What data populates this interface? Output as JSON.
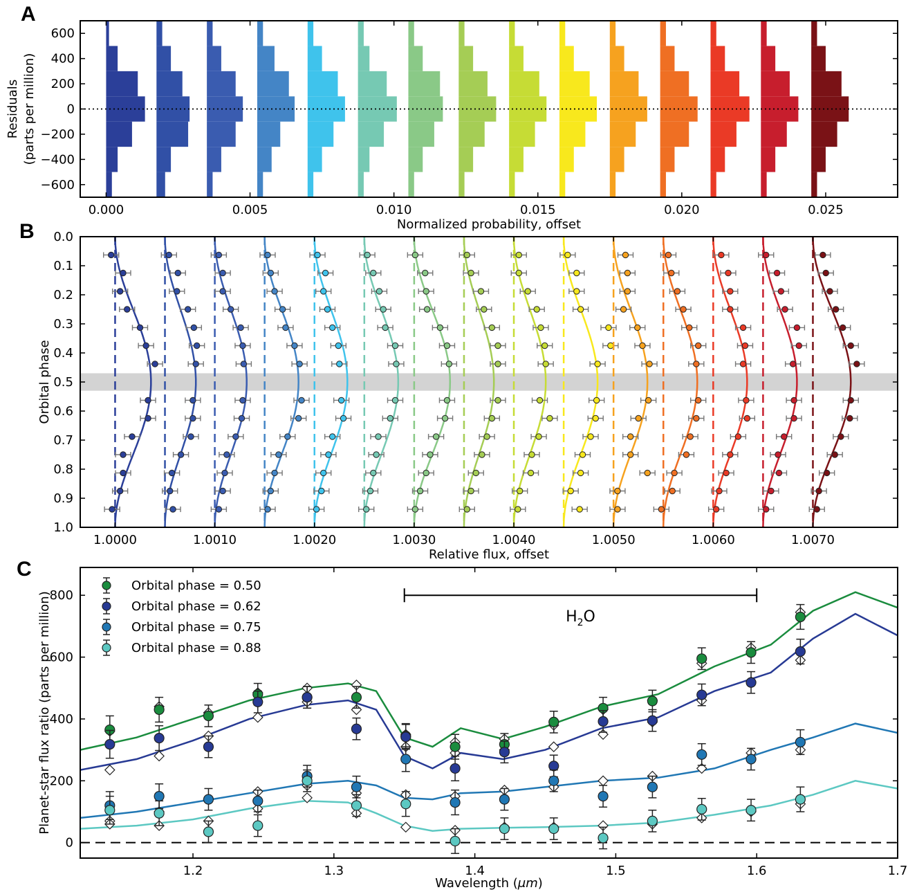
{
  "panel_letters": [
    "A",
    "B",
    "C"
  ],
  "colors": [
    "#2b3f99",
    "#3150a6",
    "#3a5cb0",
    "#4485c6",
    "#3fc3ec",
    "#76c9b3",
    "#8ac987",
    "#a5cd55",
    "#c6dc35",
    "#f8e81d",
    "#f6a21f",
    "#ef6f23",
    "#ea3a26",
    "#c71e2d",
    "#7a1216"
  ],
  "chart_data": [
    {
      "type": "histogram",
      "panel": "A",
      "xlabel": "Normalized probability, offset",
      "ylabel": "Residuals (parts per million)",
      "ylabel_lines": [
        "Residuals",
        "(parts per million)"
      ],
      "xlim": [
        -0.0009,
        0.0275
      ],
      "ylim": [
        -700,
        700
      ],
      "xticks": [
        0.0,
        0.005,
        0.01,
        0.015,
        0.02,
        0.025
      ],
      "xtick_labels": [
        "0.000",
        "0.005",
        "0.010",
        "0.015",
        "0.020",
        "0.025"
      ],
      "yticks": [
        -600,
        -400,
        -200,
        0,
        200,
        400,
        600
      ],
      "ytick_labels": [
        "−600",
        "−400",
        "−200",
        "0",
        "200",
        "400",
        "600"
      ],
      "bin_edges": [
        -700,
        -500,
        -300,
        -100,
        100,
        300,
        500,
        700
      ],
      "offset_step": 0.00175,
      "reference_line": 0,
      "series_values": [
        [
          0.0002,
          0.0004,
          0.0009,
          0.00135,
          0.0011,
          0.0004,
          0.0001
        ],
        [
          0.0003,
          0.0005,
          0.0011,
          0.00115,
          0.0009,
          0.0005,
          0.0002
        ],
        [
          0.0002,
          0.0005,
          0.001,
          0.00125,
          0.001,
          0.0005,
          0.0002
        ],
        [
          0.0002,
          0.0005,
          0.0008,
          0.0013,
          0.0011,
          0.0006,
          0.0002
        ],
        [
          0.0002,
          0.0005,
          0.0009,
          0.0013,
          0.00105,
          0.0005,
          0.0002
        ],
        [
          0.0002,
          0.0004,
          0.0009,
          0.00135,
          0.001,
          0.0004,
          0.0002
        ],
        [
          0.0002,
          0.0005,
          0.0009,
          0.0012,
          0.0011,
          0.0005,
          0.0002
        ],
        [
          0.0002,
          0.0005,
          0.0009,
          0.0013,
          0.001,
          0.0005,
          0.0002
        ],
        [
          0.0002,
          0.0005,
          0.0009,
          0.0013,
          0.00105,
          0.0005,
          0.0002
        ],
        [
          0.0002,
          0.0005,
          0.0009,
          0.0013,
          0.00105,
          0.0005,
          0.0002
        ],
        [
          0.0002,
          0.0005,
          0.0009,
          0.0013,
          0.001,
          0.0005,
          0.0002
        ],
        [
          0.0002,
          0.0005,
          0.001,
          0.0013,
          0.001,
          0.0005,
          0.0002
        ],
        [
          0.0002,
          0.0005,
          0.0009,
          0.00135,
          0.001,
          0.0005,
          0.0002
        ],
        [
          0.0002,
          0.0005,
          0.0009,
          0.0013,
          0.001,
          0.0005,
          0.0002
        ],
        [
          0.0002,
          0.0005,
          0.0009,
          0.0013,
          0.00105,
          0.0005,
          0.0002
        ]
      ]
    },
    {
      "type": "line",
      "panel": "B",
      "xlabel": "Relative flux, offset",
      "ylabel": "Orbital phase",
      "xlim": [
        0.99965,
        1.00785
      ],
      "ylim": [
        1.0,
        0.0
      ],
      "xticks": [
        1.0,
        1.001,
        1.002,
        1.003,
        1.004,
        1.005,
        1.006,
        1.007
      ],
      "xtick_labels": [
        "1.0000",
        "1.0010",
        "1.0020",
        "1.0030",
        "1.0040",
        "1.0050",
        "1.0060",
        "1.0070"
      ],
      "yticks": [
        0.0,
        0.1,
        0.2,
        0.3,
        0.4,
        0.5,
        0.6,
        0.7,
        0.8,
        0.9,
        1.0
      ],
      "ytick_labels": [
        "0.0",
        "0.1",
        "0.2",
        "0.3",
        "0.4",
        "0.5",
        "0.6",
        "0.7",
        "0.8",
        "0.9",
        "1.0"
      ],
      "eclipse_band": [
        0.47,
        0.53
      ],
      "offset_step": 0.0005,
      "phases": [
        0.063,
        0.125,
        0.188,
        0.25,
        0.313,
        0.375,
        0.438,
        0.563,
        0.625,
        0.688,
        0.75,
        0.813,
        0.875,
        0.938
      ],
      "model_amplitudes": [
        0.00036,
        0.00031,
        0.00032,
        0.00034,
        0.00033,
        0.00034,
        0.00036,
        0.0003,
        0.00032,
        0.00034,
        0.00034,
        0.00034,
        0.00034,
        0.00034,
        0.00038
      ],
      "offset_flux_values": [
        [
          0.99996,
          1.00008,
          1.00005,
          1.00012,
          1.00025,
          1.00031,
          1.0004,
          1.00033,
          1.00033,
          1.00017,
          1.00008,
          1.00008,
          1.00005,
          0.99997
        ],
        [
          1.00004,
          1.00013,
          1.00012,
          1.00023,
          1.00029,
          1.00032,
          1.00031,
          1.00028,
          1.00028,
          1.00026,
          1.00016,
          1.00007,
          1.00005,
          1.00008
        ],
        [
          1.00004,
          1.00008,
          1.00008,
          1.00016,
          1.00026,
          1.00028,
          1.00029,
          1.00028,
          1.00027,
          1.00021,
          1.00012,
          1.0001,
          1.00008,
          1.00004
        ],
        [
          1.00003,
          1.00006,
          1.0001,
          1.00018,
          1.00021,
          1.0003,
          1.00035,
          1.00037,
          1.00034,
          1.00023,
          1.00014,
          1.0001,
          1.00006,
          1.00003
        ],
        [
          1.00003,
          1.00011,
          1.00009,
          1.00013,
          1.00018,
          1.00024,
          1.00025,
          1.00027,
          1.00029,
          1.00018,
          1.00014,
          1.00009,
          1.00007,
          1.00002
        ],
        [
          1.00003,
          1.00009,
          1.00015,
          1.00019,
          1.00021,
          1.00031,
          1.00032,
          1.00031,
          1.00026,
          1.00014,
          1.00012,
          1.00009,
          1.00006,
          1.00002
        ],
        [
          1.00001,
          1.00011,
          1.00012,
          1.00013,
          1.00026,
          1.00033,
          1.00035,
          1.00033,
          1.00031,
          1.00022,
          1.00016,
          1.00012,
          1.00006,
          1.00001
        ],
        [
          1.00003,
          1.00007,
          1.00017,
          1.0002,
          1.00028,
          1.00034,
          1.00034,
          1.00034,
          1.00028,
          1.00023,
          1.00018,
          1.00012,
          1.00007,
          1.00003
        ],
        [
          1.00005,
          1.00005,
          1.00014,
          1.00023,
          1.00027,
          1.00031,
          1.00032,
          1.00026,
          1.00036,
          1.00025,
          1.00018,
          1.00017,
          1.00006,
          1.00004
        ],
        [
          1.00004,
          1.00013,
          1.00013,
          1.00017,
          1.00045,
          1.00047,
          1.00034,
          1.00033,
          1.00032,
          1.00027,
          1.00019,
          1.00017,
          1.00007,
          1.00016
        ],
        [
          1.00012,
          1.00014,
          1.00014,
          1.0001,
          1.00024,
          1.00029,
          1.00036,
          1.00035,
          1.00025,
          1.00017,
          1.00017,
          1.00034,
          1.00004,
          1.00004
        ],
        [
          1.00005,
          1.00008,
          1.00014,
          1.0002,
          1.00026,
          1.00035,
          1.00033,
          1.00035,
          1.00033,
          1.00027,
          1.00023,
          1.00011,
          1.00009,
          0.99998
        ],
        [
          1.00008,
          1.00015,
          1.00017,
          1.00017,
          1.0003,
          1.00032,
          1.0003,
          1.00033,
          1.00034,
          1.00025,
          1.00017,
          1.00013,
          1.00006,
          1.00003
        ],
        [
          1.00003,
          1.00014,
          1.00018,
          1.00022,
          1.00034,
          1.00036,
          1.0003,
          1.00031,
          1.00031,
          1.00021,
          1.00015,
          1.00016,
          1.00008,
          1.00003
        ],
        [
          1.0001,
          1.00013,
          1.00017,
          1.00023,
          1.0003,
          1.00038,
          1.00044,
          1.00038,
          1.00037,
          1.00028,
          1.00022,
          1.00014,
          1.00006,
          1.00004
        ]
      ]
    },
    {
      "type": "line",
      "panel": "C",
      "xlabel": "Wavelength (μm)",
      "xlabel_text": "Wavelength (",
      "xlabel_unit": "μm",
      "xlabel_close": ")",
      "ylabel": "Planet-star flux ratio (parts per million)",
      "xlim": [
        1.12,
        1.7
      ],
      "ylim": [
        -50,
        890
      ],
      "xticks": [
        1.2,
        1.3,
        1.4,
        1.5,
        1.6,
        1.7
      ],
      "xtick_labels": [
        "1.2",
        "1.3",
        "1.4",
        "1.5",
        "1.6",
        "1.7"
      ],
      "yticks": [
        0,
        200,
        400,
        600,
        800
      ],
      "ytick_labels": [
        "0",
        "200",
        "400",
        "600",
        "800"
      ],
      "annotation": {
        "text": "H",
        "subscript": "2",
        "text_after": "O",
        "x_range": [
          1.35,
          1.6
        ],
        "y": 800
      },
      "zero_line": 0,
      "x": [
        1.141,
        1.176,
        1.211,
        1.246,
        1.281,
        1.316,
        1.351,
        1.386,
        1.421,
        1.456,
        1.491,
        1.526,
        1.561,
        1.596,
        1.631
      ],
      "series": [
        {
          "name": "Orbital phase = 0.50",
          "label_text": "Orbital phase = 0.50",
          "color": "#1a8c3e",
          "values": [
            365,
            430,
            410,
            480,
            470,
            470,
            345,
            310,
            318,
            390,
            435,
            458,
            595,
            615,
            730
          ],
          "errors": [
            45,
            40,
            35,
            35,
            35,
            35,
            40,
            40,
            35,
            35,
            35,
            35,
            35,
            35,
            40
          ],
          "model_x": [
            1.12,
            1.16,
            1.2,
            1.24,
            1.28,
            1.31,
            1.33,
            1.35,
            1.37,
            1.39,
            1.42,
            1.45,
            1.49,
            1.53,
            1.57,
            1.61,
            1.64,
            1.67,
            1.7
          ],
          "model_y": [
            300,
            340,
            400,
            460,
            500,
            515,
            490,
            340,
            310,
            370,
            335,
            375,
            440,
            480,
            570,
            640,
            750,
            810,
            760
          ],
          "model_points": [
            360,
            440,
            420,
            485,
            500,
            510,
            350,
            325,
            335,
            380,
            430,
            460,
            580,
            630,
            745
          ]
        },
        {
          "name": "Orbital phase = 0.62",
          "label_text": "Orbital phase = 0.62",
          "color": "#273a94",
          "values": [
            318,
            338,
            310,
            455,
            470,
            368,
            342,
            240,
            293,
            248,
            392,
            395,
            478,
            518,
            618
          ],
          "errors": [
            45,
            40,
            35,
            35,
            35,
            35,
            40,
            40,
            35,
            35,
            35,
            35,
            35,
            35,
            40
          ],
          "model_x": [
            1.12,
            1.16,
            1.2,
            1.24,
            1.28,
            1.31,
            1.33,
            1.35,
            1.37,
            1.39,
            1.42,
            1.45,
            1.49,
            1.53,
            1.57,
            1.61,
            1.64,
            1.67,
            1.7
          ],
          "model_y": [
            235,
            270,
            330,
            400,
            445,
            460,
            430,
            280,
            240,
            290,
            270,
            300,
            370,
            405,
            490,
            550,
            660,
            740,
            670
          ],
          "model_points": [
            235,
            280,
            345,
            405,
            455,
            430,
            310,
            290,
            300,
            310,
            350,
            390,
            460,
            520,
            590
          ]
        },
        {
          "name": "Orbital phase = 0.75",
          "label_text": "Orbital phase = 0.75",
          "color": "#2077b4",
          "values": [
            120,
            150,
            140,
            135,
            215,
            180,
            270,
            130,
            140,
            200,
            150,
            180,
            285,
            270,
            325
          ],
          "errors": [
            45,
            40,
            35,
            35,
            35,
            35,
            40,
            40,
            35,
            35,
            35,
            35,
            35,
            35,
            40
          ],
          "model_x": [
            1.12,
            1.16,
            1.2,
            1.24,
            1.28,
            1.31,
            1.33,
            1.35,
            1.37,
            1.39,
            1.42,
            1.45,
            1.49,
            1.53,
            1.57,
            1.61,
            1.64,
            1.67,
            1.7
          ],
          "model_y": [
            80,
            100,
            130,
            160,
            190,
            200,
            185,
            145,
            140,
            160,
            165,
            180,
            200,
            210,
            240,
            300,
            340,
            385,
            355
          ],
          "model_points": [
            70,
            100,
            140,
            165,
            185,
            160,
            155,
            150,
            170,
            180,
            200,
            215,
            240,
            290,
            300
          ]
        },
        {
          "name": "Orbital phase = 0.88",
          "label_text": "Orbital phase = 0.88",
          "color": "#5cc8c2",
          "values": [
            105,
            95,
            35,
            55,
            200,
            120,
            125,
            5,
            45,
            45,
            15,
            70,
            108,
            105,
            140
          ],
          "errors": [
            45,
            40,
            35,
            35,
            35,
            35,
            40,
            40,
            35,
            35,
            35,
            35,
            35,
            35,
            40
          ],
          "model_x": [
            1.12,
            1.16,
            1.2,
            1.24,
            1.28,
            1.31,
            1.33,
            1.35,
            1.37,
            1.39,
            1.42,
            1.45,
            1.49,
            1.53,
            1.57,
            1.61,
            1.64,
            1.67,
            1.7
          ],
          "model_y": [
            45,
            55,
            75,
            110,
            135,
            130,
            95,
            55,
            38,
            45,
            48,
            50,
            55,
            65,
            90,
            120,
            155,
            200,
            175
          ],
          "model_points": [
            60,
            55,
            70,
            110,
            145,
            95,
            50,
            40,
            50,
            50,
            55,
            60,
            80,
            100,
            125
          ]
        }
      ]
    }
  ]
}
